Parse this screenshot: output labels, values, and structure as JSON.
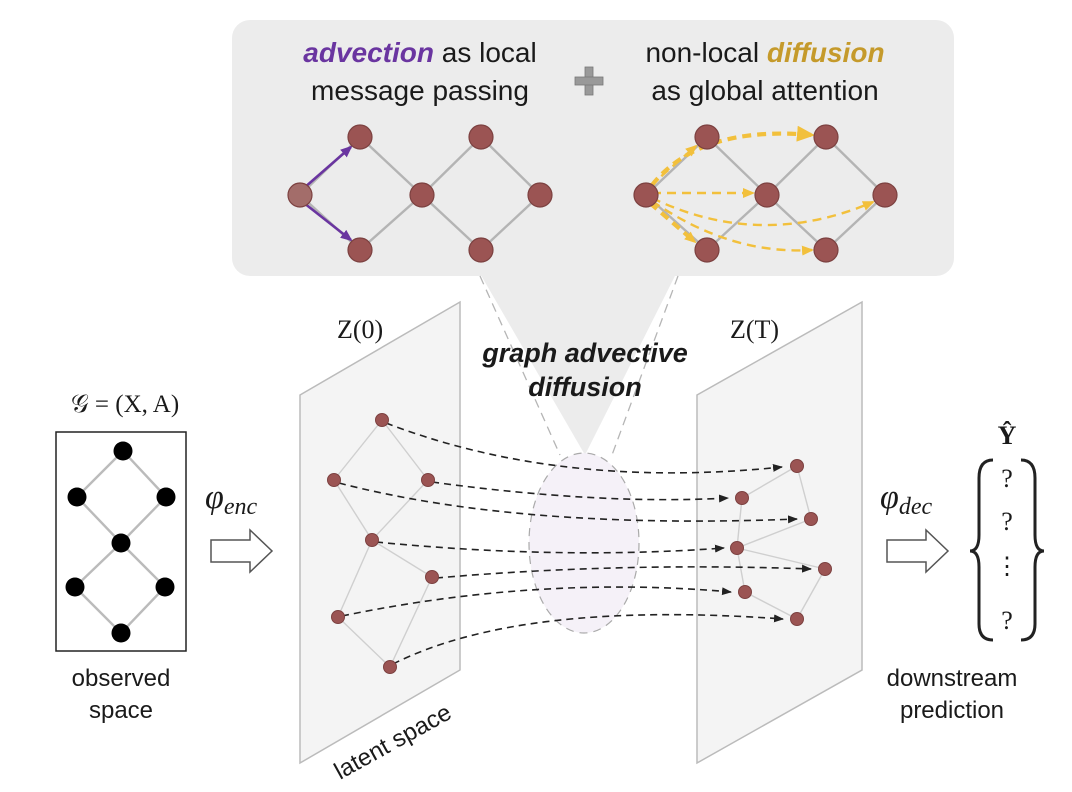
{
  "colors": {
    "advection": "#6a35a0",
    "diffusion": "#c59a2b",
    "attention_arrow": "#f2c03c",
    "node_fill": "#9b5453",
    "node_fill_source": "#a36d6a",
    "edge": "#b4b4b4",
    "panel_bg": "#ececec",
    "observed_node": "#000000"
  },
  "top_panel": {
    "advection_word": "advection",
    "advection_rest_1": " as local",
    "advection_rest_2": "message passing",
    "plus_symbol": "+",
    "diffusion_prefix": "non-local ",
    "diffusion_word": "diffusion",
    "diffusion_rest": "as global attention"
  },
  "center": {
    "line1": "graph advective",
    "line2": "diffusion"
  },
  "labels": {
    "z0_label": "Z(0)",
    "zt_label": "Z(T)",
    "graph_def": "𝒢 = (X, A)",
    "phi_enc": "φ",
    "phi_enc_sub": "enc",
    "phi_dec": "φ",
    "phi_dec_sub": "dec",
    "y_hat": "Ŷ",
    "q1": "?",
    "q2": "?",
    "vdots": "⋮",
    "q3": "?",
    "observed_1": "observed",
    "observed_2": "space",
    "latent_space": "latent space",
    "downstream_1": "downstream",
    "downstream_2": "prediction"
  }
}
